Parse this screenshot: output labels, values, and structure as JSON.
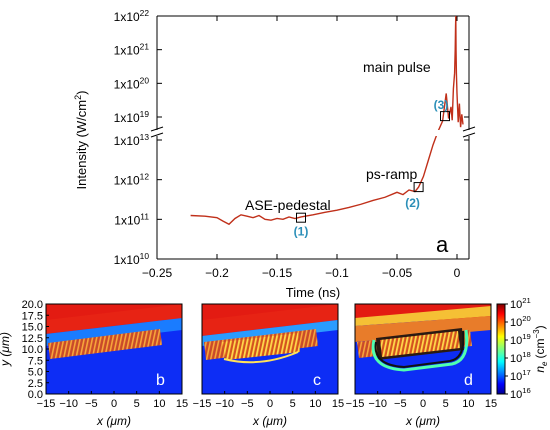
{
  "chart_data": [
    {
      "type": "line",
      "xlabel": "Time (ns)",
      "ylabel": "Intensity (W/cm",
      "ylabel_sup": "2",
      "ylabel_close": ")",
      "xlim": [
        -0.25,
        0.01
      ],
      "ylim": [
        10000000000.0,
        1e+22
      ],
      "yscale": "log",
      "y_axis_break": [
        10000000000000.0,
        1e+19
      ],
      "x_ticks": [
        -0.25,
        -0.2,
        -0.15,
        -0.1,
        -0.05,
        0
      ],
      "x_tick_labels": [
        "−0.25",
        "−0.2",
        "−0.15",
        "−0.1",
        "−0.05",
        "0"
      ],
      "y_ticks": [
        {
          "value": 10000000000.0,
          "mant": "1x10",
          "exp": "10"
        },
        {
          "value": 100000000000.0,
          "mant": "1x10",
          "exp": "11"
        },
        {
          "value": 1000000000000.0,
          "mant": "1x10",
          "exp": "12"
        },
        {
          "value": 10000000000000.0,
          "mant": "1x10",
          "exp": "13"
        },
        {
          "value": 1e+19,
          "mant": "1x10",
          "exp": "19"
        },
        {
          "value": 1e+20,
          "mant": "1x10",
          "exp": "20"
        },
        {
          "value": 1e+21,
          "mant": "1x10",
          "exp": "21"
        },
        {
          "value": 1e+22,
          "mant": "1x10",
          "exp": "22"
        }
      ],
      "series": [
        {
          "color": "#c0301a",
          "x": [
            -0.222,
            -0.21,
            -0.2,
            -0.195,
            -0.19,
            -0.185,
            -0.18,
            -0.175,
            -0.17,
            -0.165,
            -0.16,
            -0.155,
            -0.15,
            -0.145,
            -0.14,
            -0.135,
            -0.13,
            -0.12,
            -0.11,
            -0.1,
            -0.09,
            -0.08,
            -0.07,
            -0.06,
            -0.05,
            -0.045,
            -0.04,
            -0.035,
            -0.032,
            -0.028,
            -0.024,
            -0.02,
            -0.016,
            -0.012,
            -0.009,
            -0.007,
            -0.005,
            -0.004,
            -0.003,
            -0.002,
            -0.0015,
            -0.0012,
            -0.001,
            -0.0008,
            -0.0005,
            0.0,
            0.001,
            0.002,
            0.003,
            0.004,
            0.005
          ],
          "y": [
            125000000000.0,
            120000000000.0,
            110000000000.0,
            90000000000.0,
            75000000000.0,
            105000000000.0,
            130000000000.0,
            120000000000.0,
            110000000000.0,
            125000000000.0,
            100000000000.0,
            95000000000.0,
            105000000000.0,
            100000000000.0,
            115000000000.0,
            105000000000.0,
            115000000000.0,
            130000000000.0,
            150000000000.0,
            170000000000.0,
            200000000000.0,
            240000000000.0,
            300000000000.0,
            360000000000.0,
            480000000000.0,
            420000000000.0,
            550000000000.0,
            500000000000.0,
            650000000000.0,
            1200000000000.0,
            3000000000000.0,
            7500000000000.0,
            16000000000000.0,
            30000000000000.0,
            5e+19,
            9e+18,
            2e+19,
            8e+18,
            7e+19,
            2e+20,
            1e+21,
            5e+21,
            1e+22,
            1e+21,
            2e+20,
            5e+19,
            7e+18,
            2.5e+19,
            5e+18,
            1.2e+19,
            6e+18
          ]
        }
      ],
      "markers": [
        {
          "x": -0.13,
          "y": 110000000000.0,
          "label": "(1)"
        },
        {
          "x": -0.032,
          "y": 650000000000.0,
          "label": "(2)"
        },
        {
          "x": -0.01,
          "y": 40000000000000.0,
          "label": "(3)"
        }
      ],
      "annotations": {
        "main_pulse": "main pulse",
        "ps_ramp": "ps-ramp",
        "ase": "ASE-pedestal",
        "panel": "a"
      }
    },
    {
      "type": "heatmap",
      "panels": [
        "b",
        "c",
        "d"
      ],
      "xlabel": "x (μm)",
      "ylabel": "y (μm)",
      "xlim": [
        -15,
        15
      ],
      "ylim": [
        0,
        20
      ],
      "x_ticks": [
        -15,
        -10,
        -5,
        0,
        5,
        10,
        15
      ],
      "x_tick_labels": [
        "−15",
        "−10",
        "−5",
        "0",
        "5",
        "10",
        "15"
      ],
      "y_ticks": [
        0,
        2.5,
        5,
        7.5,
        10,
        12.5,
        15,
        17.5,
        20
      ],
      "y_tick_labels": [
        "0.0",
        "2.5",
        "5.0",
        "7.5",
        "10.0",
        "12.5",
        "15.0",
        "17.5",
        "20.0"
      ],
      "colorbar": {
        "label": "n",
        "label_sub": "e",
        "label_unit": "(cm",
        "label_unit_sup": "−3",
        "label_close": ")",
        "scale": "log",
        "range": [
          1e+16,
          1e+21
        ],
        "ticks": [
          {
            "value": 1e+21,
            "mant": "10",
            "exp": "21"
          },
          {
            "value": 1e+20,
            "mant": "10",
            "exp": "20"
          },
          {
            "value": 1e+19,
            "mant": "10",
            "exp": "19"
          },
          {
            "value": 1e+18,
            "mant": "10",
            "exp": "18"
          },
          {
            "value": 1e+17,
            "mant": "10",
            "exp": "17"
          },
          {
            "value": 1e+16,
            "mant": "10",
            "exp": "16"
          }
        ]
      }
    }
  ]
}
